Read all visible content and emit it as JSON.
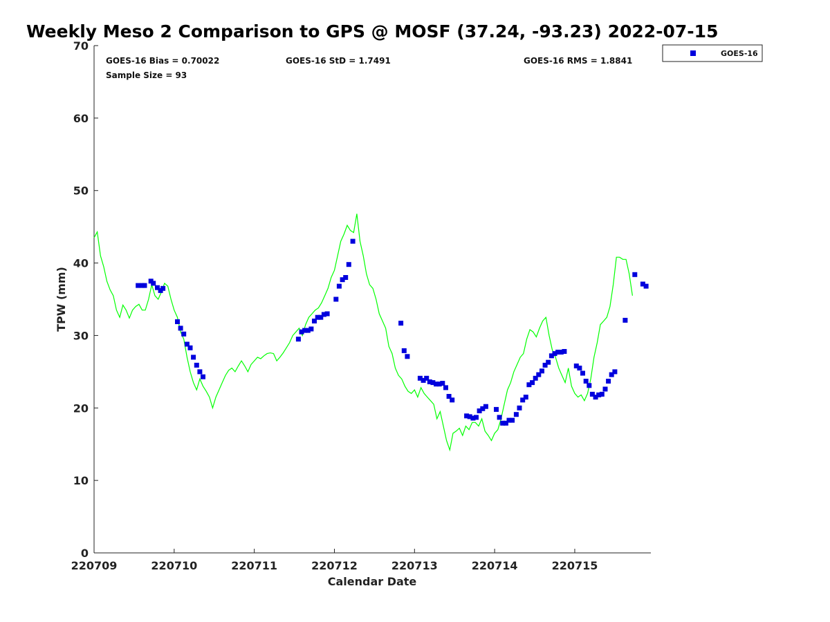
{
  "chart_data": {
    "type": "scatter",
    "title": "Weekly Meso 2 Comparison to GPS @ MOSF (37.24, -93.23) 2022-07-15",
    "xlabel": "Calendar Date",
    "ylabel": "TPW (mm)",
    "xlim": [
      0,
      6.95
    ],
    "ylim": [
      0,
      70
    ],
    "x_ticks": [
      0,
      1,
      2,
      3,
      4,
      5,
      6
    ],
    "x_tick_labels": [
      "220709",
      "220710",
      "220711",
      "220712",
      "220713",
      "220714",
      "220715"
    ],
    "y_ticks": [
      0,
      10,
      20,
      30,
      40,
      50,
      60,
      70
    ],
    "y_tick_labels": [
      "0",
      "10",
      "20",
      "30",
      "40",
      "50",
      "60",
      "70"
    ],
    "stats": {
      "bias": "GOES-16 Bias = 0.70022",
      "std": "GOES-16 StD = 1.7491",
      "rms": "GOES-16 RMS = 1.8841",
      "sample": "Sample Size = 93"
    },
    "legend": {
      "label": "GOES-16",
      "location": "top-right outside"
    },
    "series": [
      {
        "name": "GPS",
        "type": "line",
        "color": "#00ff00",
        "points": [
          [
            0.0,
            43.5
          ],
          [
            0.04,
            44.3
          ],
          [
            0.08,
            41.0
          ],
          [
            0.12,
            39.5
          ],
          [
            0.16,
            37.5
          ],
          [
            0.2,
            36.3
          ],
          [
            0.24,
            35.5
          ],
          [
            0.28,
            33.5
          ],
          [
            0.32,
            32.5
          ],
          [
            0.36,
            34.2
          ],
          [
            0.4,
            33.5
          ],
          [
            0.44,
            32.4
          ],
          [
            0.48,
            33.5
          ],
          [
            0.52,
            34.0
          ],
          [
            0.56,
            34.3
          ],
          [
            0.6,
            33.5
          ],
          [
            0.64,
            33.5
          ],
          [
            0.68,
            35.0
          ],
          [
            0.72,
            37.0
          ],
          [
            0.76,
            35.5
          ],
          [
            0.8,
            35.0
          ],
          [
            0.84,
            36.0
          ],
          [
            0.88,
            37.2
          ],
          [
            0.92,
            36.8
          ],
          [
            0.96,
            35.0
          ],
          [
            1.0,
            33.5
          ],
          [
            1.04,
            32.5
          ],
          [
            1.08,
            30.5
          ],
          [
            1.12,
            29.5
          ],
          [
            1.16,
            27.0
          ],
          [
            1.2,
            25.0
          ],
          [
            1.24,
            23.5
          ],
          [
            1.28,
            22.5
          ],
          [
            1.32,
            24.0
          ],
          [
            1.36,
            23.0
          ],
          [
            1.4,
            22.3
          ],
          [
            1.44,
            21.5
          ],
          [
            1.48,
            20.0
          ],
          [
            1.52,
            21.5
          ],
          [
            1.56,
            22.5
          ],
          [
            1.6,
            23.5
          ],
          [
            1.64,
            24.5
          ],
          [
            1.68,
            25.2
          ],
          [
            1.72,
            25.5
          ],
          [
            1.76,
            25.0
          ],
          [
            1.8,
            25.8
          ],
          [
            1.84,
            26.5
          ],
          [
            1.88,
            25.8
          ],
          [
            1.92,
            25.0
          ],
          [
            1.96,
            26.0
          ],
          [
            2.0,
            26.5
          ],
          [
            2.04,
            27.0
          ],
          [
            2.08,
            26.8
          ],
          [
            2.12,
            27.2
          ],
          [
            2.16,
            27.5
          ],
          [
            2.2,
            27.6
          ],
          [
            2.24,
            27.5
          ],
          [
            2.28,
            26.5
          ],
          [
            2.32,
            27.0
          ],
          [
            2.36,
            27.6
          ],
          [
            2.4,
            28.3
          ],
          [
            2.44,
            29.0
          ],
          [
            2.48,
            30.0
          ],
          [
            2.52,
            30.5
          ],
          [
            2.56,
            31.0
          ],
          [
            2.6,
            30.0
          ],
          [
            2.64,
            31.5
          ],
          [
            2.68,
            32.5
          ],
          [
            2.72,
            33.0
          ],
          [
            2.76,
            33.5
          ],
          [
            2.8,
            33.8
          ],
          [
            2.84,
            34.5
          ],
          [
            2.88,
            35.5
          ],
          [
            2.92,
            36.5
          ],
          [
            2.96,
            38.0
          ],
          [
            3.0,
            39.0
          ],
          [
            3.04,
            41.0
          ],
          [
            3.08,
            43.0
          ],
          [
            3.12,
            44.0
          ],
          [
            3.16,
            45.2
          ],
          [
            3.2,
            44.5
          ],
          [
            3.24,
            44.2
          ],
          [
            3.28,
            46.8
          ],
          [
            3.32,
            43.0
          ],
          [
            3.36,
            41.0
          ],
          [
            3.4,
            38.5
          ],
          [
            3.44,
            37.0
          ],
          [
            3.48,
            36.5
          ],
          [
            3.52,
            35.0
          ],
          [
            3.56,
            33.0
          ],
          [
            3.6,
            32.0
          ],
          [
            3.64,
            31.0
          ],
          [
            3.68,
            28.5
          ],
          [
            3.72,
            27.5
          ],
          [
            3.76,
            25.5
          ],
          [
            3.8,
            24.5
          ],
          [
            3.84,
            24.0
          ],
          [
            3.88,
            23.0
          ],
          [
            3.92,
            22.3
          ],
          [
            3.96,
            22.0
          ],
          [
            4.0,
            22.5
          ],
          [
            4.04,
            21.5
          ],
          [
            4.08,
            22.8
          ],
          [
            4.12,
            22.0
          ],
          [
            4.16,
            21.5
          ],
          [
            4.2,
            21.0
          ],
          [
            4.24,
            20.5
          ],
          [
            4.28,
            18.5
          ],
          [
            4.32,
            19.5
          ],
          [
            4.36,
            17.5
          ],
          [
            4.4,
            15.5
          ],
          [
            4.44,
            14.2
          ],
          [
            4.48,
            16.5
          ],
          [
            4.52,
            16.8
          ],
          [
            4.56,
            17.2
          ],
          [
            4.6,
            16.2
          ],
          [
            4.64,
            17.5
          ],
          [
            4.68,
            17.0
          ],
          [
            4.72,
            18.0
          ],
          [
            4.76,
            18.0
          ],
          [
            4.8,
            17.5
          ],
          [
            4.84,
            18.5
          ],
          [
            4.88,
            16.8
          ],
          [
            4.92,
            16.2
          ],
          [
            4.96,
            15.5
          ],
          [
            5.0,
            16.5
          ],
          [
            5.04,
            17.0
          ],
          [
            5.08,
            18.5
          ],
          [
            5.12,
            20.5
          ],
          [
            5.16,
            22.5
          ],
          [
            5.2,
            23.5
          ],
          [
            5.24,
            25.0
          ],
          [
            5.28,
            26.0
          ],
          [
            5.32,
            27.0
          ],
          [
            5.36,
            27.5
          ],
          [
            5.4,
            29.5
          ],
          [
            5.44,
            30.8
          ],
          [
            5.48,
            30.5
          ],
          [
            5.52,
            29.8
          ],
          [
            5.56,
            31.0
          ],
          [
            5.6,
            32.0
          ],
          [
            5.64,
            32.5
          ],
          [
            5.68,
            30.0
          ],
          [
            5.72,
            28.0
          ],
          [
            5.76,
            27.0
          ],
          [
            5.8,
            25.5
          ],
          [
            5.84,
            24.5
          ],
          [
            5.88,
            23.5
          ],
          [
            5.92,
            25.5
          ],
          [
            5.96,
            23.0
          ],
          [
            6.0,
            22.0
          ],
          [
            6.04,
            21.5
          ],
          [
            6.08,
            21.8
          ],
          [
            6.12,
            21.0
          ],
          [
            6.16,
            22.0
          ],
          [
            6.2,
            24.0
          ],
          [
            6.24,
            27.0
          ],
          [
            6.28,
            29.0
          ],
          [
            6.32,
            31.5
          ],
          [
            6.36,
            32.0
          ],
          [
            6.4,
            32.5
          ],
          [
            6.44,
            34.0
          ],
          [
            6.48,
            37.0
          ],
          [
            6.52,
            40.8
          ],
          [
            6.56,
            40.8
          ],
          [
            6.6,
            40.5
          ],
          [
            6.64,
            40.5
          ],
          [
            6.68,
            38.5
          ],
          [
            6.72,
            35.5
          ]
        ]
      },
      {
        "name": "GOES-16",
        "type": "scatter",
        "color": "#0000dd",
        "points": [
          [
            0.55,
            36.9
          ],
          [
            0.6,
            36.9
          ],
          [
            0.63,
            36.9
          ],
          [
            0.71,
            37.5
          ],
          [
            0.74,
            37.2
          ],
          [
            0.79,
            36.6
          ],
          [
            0.83,
            36.2
          ],
          [
            0.86,
            36.5
          ],
          [
            1.04,
            31.9
          ],
          [
            1.08,
            31.0
          ],
          [
            1.12,
            30.2
          ],
          [
            1.16,
            28.8
          ],
          [
            1.2,
            28.3
          ],
          [
            1.24,
            27.0
          ],
          [
            1.28,
            25.9
          ],
          [
            1.32,
            25.0
          ],
          [
            1.36,
            24.3
          ],
          [
            2.55,
            29.5
          ],
          [
            2.59,
            30.5
          ],
          [
            2.63,
            30.7
          ],
          [
            2.67,
            30.7
          ],
          [
            2.71,
            30.9
          ],
          [
            2.75,
            32.0
          ],
          [
            2.79,
            32.5
          ],
          [
            2.83,
            32.5
          ],
          [
            2.87,
            32.9
          ],
          [
            2.91,
            33.0
          ],
          [
            3.02,
            35.0
          ],
          [
            3.06,
            36.8
          ],
          [
            3.1,
            37.7
          ],
          [
            3.14,
            38.0
          ],
          [
            3.18,
            39.8
          ],
          [
            3.23,
            43.0
          ],
          [
            3.83,
            31.7
          ],
          [
            3.87,
            27.9
          ],
          [
            3.91,
            27.1
          ],
          [
            4.07,
            24.1
          ],
          [
            4.11,
            23.8
          ],
          [
            4.15,
            24.1
          ],
          [
            4.19,
            23.6
          ],
          [
            4.23,
            23.5
          ],
          [
            4.27,
            23.3
          ],
          [
            4.31,
            23.3
          ],
          [
            4.35,
            23.4
          ],
          [
            4.39,
            22.8
          ],
          [
            4.43,
            21.6
          ],
          [
            4.47,
            21.1
          ],
          [
            4.65,
            18.9
          ],
          [
            4.69,
            18.8
          ],
          [
            4.73,
            18.6
          ],
          [
            4.77,
            18.7
          ],
          [
            4.81,
            19.6
          ],
          [
            4.85,
            19.9
          ],
          [
            4.89,
            20.2
          ],
          [
            5.02,
            19.8
          ],
          [
            5.06,
            18.7
          ],
          [
            5.1,
            17.9
          ],
          [
            5.14,
            17.9
          ],
          [
            5.18,
            18.3
          ],
          [
            5.22,
            18.3
          ],
          [
            5.27,
            19.1
          ],
          [
            5.31,
            20.0
          ],
          [
            5.35,
            21.1
          ],
          [
            5.39,
            21.5
          ],
          [
            5.43,
            23.2
          ],
          [
            5.47,
            23.5
          ],
          [
            5.51,
            24.1
          ],
          [
            5.55,
            24.6
          ],
          [
            5.59,
            25.1
          ],
          [
            5.63,
            25.9
          ],
          [
            5.67,
            26.3
          ],
          [
            5.71,
            27.2
          ],
          [
            5.75,
            27.5
          ],
          [
            5.79,
            27.7
          ],
          [
            5.83,
            27.7
          ],
          [
            5.87,
            27.8
          ],
          [
            6.02,
            25.8
          ],
          [
            6.06,
            25.5
          ],
          [
            6.1,
            24.8
          ],
          [
            6.14,
            23.7
          ],
          [
            6.18,
            23.1
          ],
          [
            6.22,
            21.9
          ],
          [
            6.26,
            21.5
          ],
          [
            6.3,
            21.8
          ],
          [
            6.34,
            21.9
          ],
          [
            6.38,
            22.6
          ],
          [
            6.42,
            23.7
          ],
          [
            6.46,
            24.6
          ],
          [
            6.5,
            25.0
          ],
          [
            6.63,
            32.1
          ],
          [
            6.75,
            38.4
          ],
          [
            6.85,
            37.1
          ],
          [
            6.89,
            36.8
          ]
        ]
      }
    ]
  }
}
